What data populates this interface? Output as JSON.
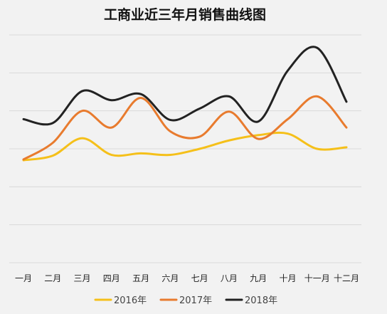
{
  "chart_data": {
    "type": "line",
    "title": "工商业近三年月销售曲线图",
    "categories": [
      "一月",
      "二月",
      "三月",
      "四月",
      "五月",
      "六月",
      "七月",
      "八月",
      "九月",
      "十月",
      "十一月",
      "十二月"
    ],
    "ylim": [
      0,
      300
    ],
    "grid": true,
    "legend": "bottom",
    "series": [
      {
        "name": "2016年",
        "color": "#f5c01a",
        "values": [
          135,
          141,
          164,
          142,
          144,
          142,
          150,
          161,
          168,
          170,
          150,
          152
        ]
      },
      {
        "name": "2017年",
        "color": "#e87b2e",
        "values": [
          136,
          158,
          200,
          178,
          217,
          173,
          166,
          199,
          163,
          189,
          219,
          178
        ]
      },
      {
        "name": "2018年",
        "color": "#222222",
        "values": [
          189,
          184,
          226,
          214,
          222,
          188,
          203,
          219,
          186,
          253,
          283,
          212
        ]
      }
    ]
  }
}
